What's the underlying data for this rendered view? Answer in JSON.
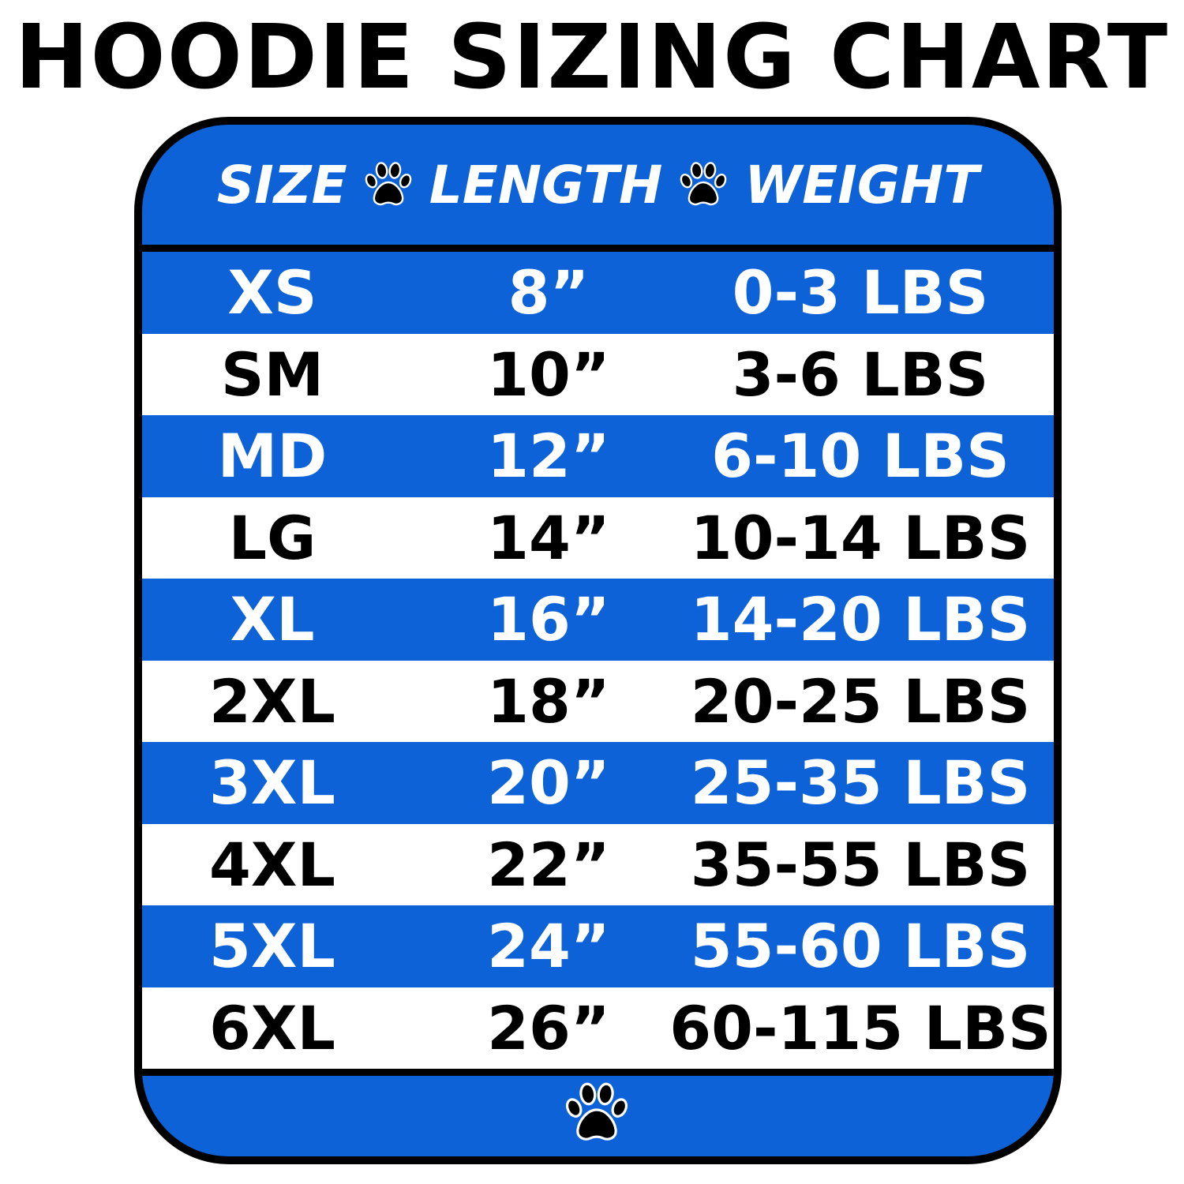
{
  "title": "HOODIE SIZING CHART",
  "colors": {
    "blue": "#0d62d8",
    "white": "#ffffff",
    "black": "#000000"
  },
  "icons": {
    "separator": "paw-print-icon",
    "footer": "paw-print-icon"
  },
  "header": {
    "size": "SIZE",
    "length": "LENGTH",
    "weight": "WEIGHT"
  },
  "rows": [
    {
      "size": "XS",
      "length": "8”",
      "weight": "0-3 LBS"
    },
    {
      "size": "SM",
      "length": "10”",
      "weight": "3-6 LBS"
    },
    {
      "size": "MD",
      "length": "12”",
      "weight": "6-10 LBS"
    },
    {
      "size": "LG",
      "length": "14”",
      "weight": "10-14 LBS"
    },
    {
      "size": "XL",
      "length": "16”",
      "weight": "14-20 LBS"
    },
    {
      "size": "2XL",
      "length": "18”",
      "weight": "20-25 LBS"
    },
    {
      "size": "3XL",
      "length": "20”",
      "weight": "25-35 LBS"
    },
    {
      "size": "4XL",
      "length": "22”",
      "weight": "35-55 LBS"
    },
    {
      "size": "5XL",
      "length": "24”",
      "weight": "55-60 LBS"
    },
    {
      "size": "6XL",
      "length": "26”",
      "weight": "60-115 LBS"
    }
  ]
}
